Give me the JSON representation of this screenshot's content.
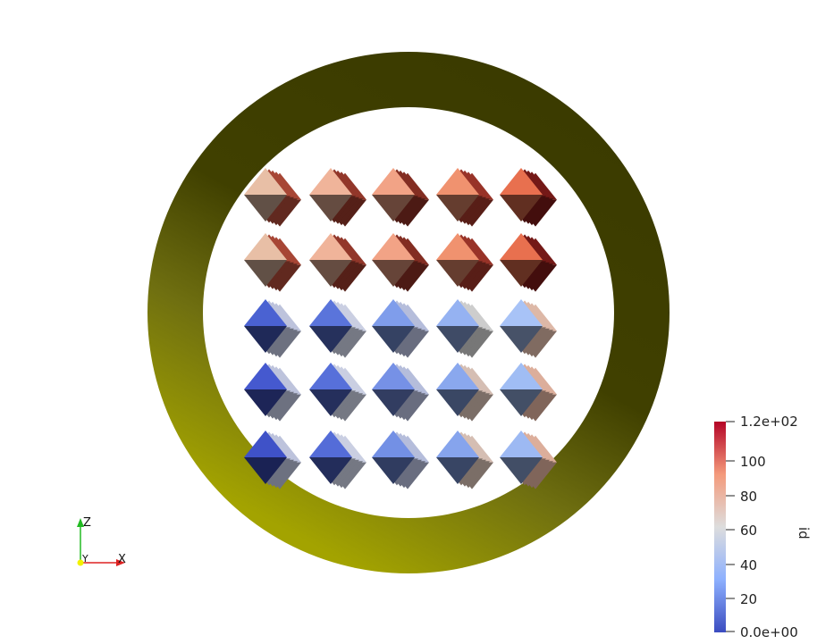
{
  "colorbar": {
    "title": "id",
    "max_label": "1.2e+02",
    "min_label": "0.0e+00",
    "ticks": [
      "100",
      "80",
      "60",
      "40",
      "20"
    ],
    "range": [
      0,
      120
    ],
    "colormap": [
      "#3b4cc0",
      "#8db0fe",
      "#dddddd",
      "#f49a7b",
      "#b40426"
    ]
  },
  "axes_triad": {
    "z_label": "Z",
    "y_label": "Y",
    "x_label": "X",
    "colors": {
      "z": "#22bb22",
      "y": "#f2f200",
      "x": "#dd2222"
    }
  },
  "ring": {
    "colors": {
      "dark": "#333300",
      "mid": "#6b6b10",
      "light": "#a3a300"
    }
  }
}
